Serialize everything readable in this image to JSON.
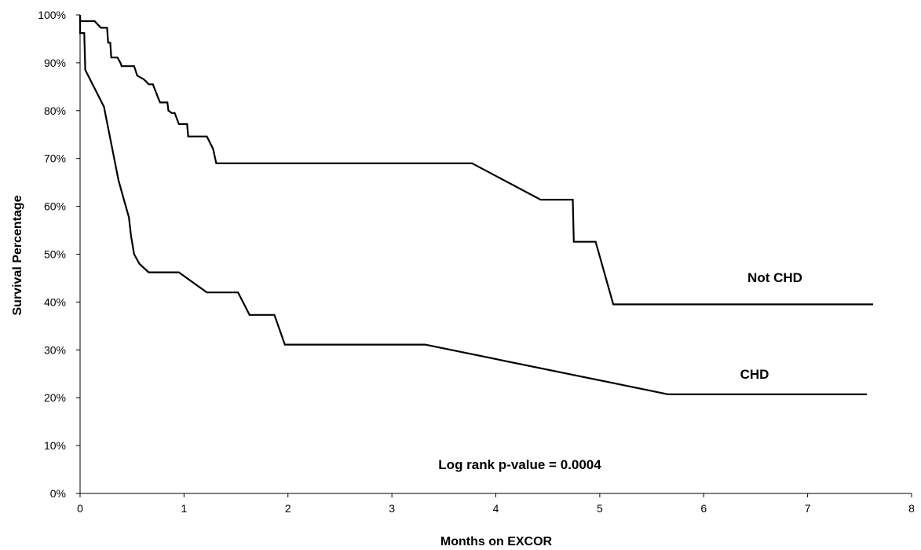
{
  "chart_data": {
    "type": "line",
    "title": "",
    "xlabel": "Months on EXCOR",
    "ylabel": "Survival Percentage",
    "xlim": [
      0,
      8
    ],
    "ylim": [
      0,
      100
    ],
    "x_ticks": [
      "0",
      "1",
      "2",
      "3",
      "4",
      "5",
      "6",
      "7",
      "8"
    ],
    "y_ticks": [
      "0%",
      "10%",
      "20%",
      "30%",
      "40%",
      "50%",
      "60%",
      "70%",
      "80%",
      "90%",
      "100%"
    ],
    "grid": false,
    "legend": "none",
    "series": [
      {
        "name": "Not CHD",
        "x": [
          0,
          0,
          0.14,
          0.2,
          0.26,
          0.27,
          0.29,
          0.3,
          0.36,
          0.39,
          0.4,
          0.52,
          0.55,
          0.61,
          0.64,
          0.66,
          0.7,
          0.76,
          0.77,
          0.84,
          0.85,
          0.88,
          0.91,
          0.95,
          0.96,
          1.03,
          1.04,
          1.22,
          1.28,
          1.31,
          1.32,
          3.77,
          4.43,
          4.74,
          4.75,
          4.95,
          4.96,
          5.13,
          7.63
        ],
        "y": [
          100,
          98.7,
          98.7,
          97.3,
          97.3,
          94.2,
          94.2,
          91.1,
          91.1,
          89.9,
          89.3,
          89.3,
          87.3,
          86.6,
          86.0,
          85.5,
          85.5,
          82.2,
          81.7,
          81.7,
          80.0,
          79.5,
          79.5,
          77.2,
          77.2,
          77.2,
          74.6,
          74.6,
          72.0,
          69.0,
          69.0,
          69.0,
          61.4,
          61.4,
          52.6,
          52.6,
          52.6,
          39.5,
          39.5
        ]
      },
      {
        "name": "CHD",
        "x": [
          0,
          0,
          0.04,
          0.05,
          0.23,
          0.3,
          0.37,
          0.44,
          0.47,
          0.49,
          0.52,
          0.57,
          0.66,
          0.95,
          1.22,
          1.52,
          1.63,
          1.87,
          1.97,
          3.32,
          5.66,
          7.57
        ],
        "y": [
          100,
          96.2,
          96.2,
          88.5,
          80.8,
          73.1,
          65.4,
          60.0,
          57.7,
          53.8,
          50.0,
          48.0,
          46.2,
          46.2,
          42.0,
          42.0,
          37.3,
          37.3,
          31.1,
          31.1,
          20.7,
          20.7
        ]
      }
    ],
    "series_labels": [
      "Not CHD",
      "CHD"
    ],
    "annotation": "Log rank p-value = 0.0004"
  }
}
